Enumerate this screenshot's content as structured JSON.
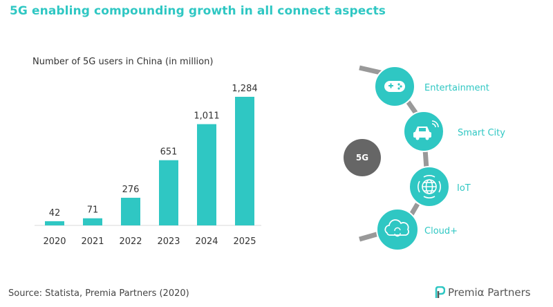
{
  "page_title": "5G enabling compounding growth in all connect aspects",
  "source": "Source: Statista, Premia Partners (2020)",
  "logo_text": "Premiα Partners",
  "colors": {
    "accent": "#2fc7c3",
    "connector": "#999999",
    "center_node": "#666666",
    "title": "#2fc7c3"
  },
  "chart_data": {
    "type": "bar",
    "title": "Number of 5G users in China (in million)",
    "categories": [
      "2020",
      "2021",
      "2022",
      "2023",
      "2024",
      "2025"
    ],
    "values": [
      42,
      71,
      276,
      651,
      1011,
      1284
    ],
    "value_labels": [
      "42",
      "71",
      "276",
      "651",
      "1,011",
      "1,284"
    ],
    "xlabel": "",
    "ylabel": "",
    "ylim": [
      0,
      1284
    ],
    "grid": false,
    "legend": "none"
  },
  "diagram": {
    "center": "5G",
    "nodes": [
      {
        "label": "Entertainment",
        "icon": "gamepad-icon"
      },
      {
        "label": "Smart City",
        "icon": "car-wifi-icon"
      },
      {
        "label": "IoT",
        "icon": "globe-signal-icon"
      },
      {
        "label": "Cloud+",
        "icon": "cloud-sync-icon"
      }
    ]
  }
}
